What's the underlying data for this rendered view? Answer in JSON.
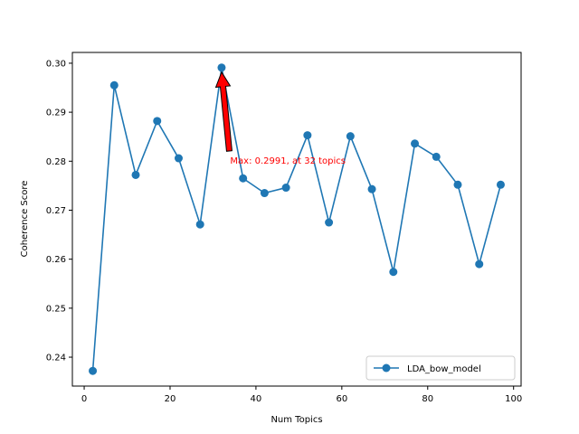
{
  "chart_data": {
    "type": "line",
    "title": "",
    "xlabel": "Num Topics",
    "ylabel": "Coherence Score",
    "xlim": [
      -2.75,
      101.75
    ],
    "ylim": [
      0.2341,
      0.3022
    ],
    "x_ticks": [
      0,
      20,
      40,
      60,
      80,
      100
    ],
    "y_ticks": [
      0.24,
      0.25,
      0.26,
      0.27,
      0.28,
      0.29,
      0.3
    ],
    "y_tick_labels": [
      "0.24",
      "0.25",
      "0.26",
      "0.27",
      "0.28",
      "0.29",
      "0.30"
    ],
    "grid": false,
    "legend": {
      "position": "lower-right"
    },
    "series": [
      {
        "name": "LDA_bow_model",
        "color": "#1f77b4",
        "marker": "circle",
        "x": [
          2,
          7,
          12,
          17,
          22,
          27,
          32,
          37,
          42,
          47,
          52,
          57,
          62,
          67,
          72,
          77,
          82,
          87,
          92,
          97
        ],
        "y": [
          0.2372,
          0.2955,
          0.2772,
          0.2882,
          0.2806,
          0.2671,
          0.2991,
          0.2765,
          0.2735,
          0.2746,
          0.2853,
          0.2675,
          0.2851,
          0.2743,
          0.2574,
          0.2836,
          0.2809,
          0.2752,
          0.259,
          0.2752
        ]
      }
    ],
    "annotation": {
      "text": "Max: 0.2991, at 32 topics",
      "color": "#ff0000",
      "arrow_color": "#ff0000",
      "point": [
        32,
        0.2991
      ],
      "text_pos": [
        34,
        0.2795
      ]
    }
  }
}
